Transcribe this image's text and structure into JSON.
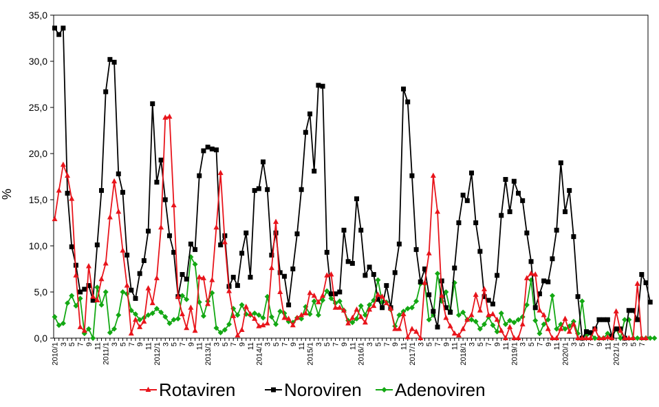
{
  "chart_data": {
    "type": "line",
    "title": "",
    "xlabel": "",
    "ylabel": "%",
    "ylim": [
      0,
      35
    ],
    "yticks": [
      "0,0",
      "5,0",
      "10,0",
      "15,0",
      "20,0",
      "25,0",
      "30,0",
      "35,0"
    ],
    "x_tick_labels": [
      "2010/1",
      "3",
      "5",
      "7",
      "9",
      "11",
      "2011/1",
      "3",
      "5",
      "7",
      "9",
      "11",
      "2012/1",
      "3",
      "5",
      "7",
      "9",
      "11",
      "2013/1",
      "3",
      "5",
      "7",
      "9",
      "11",
      "2014/1",
      "3",
      "5",
      "7",
      "9",
      "11",
      "2015/1",
      "3",
      "5",
      "7",
      "9",
      "11",
      "2016/1",
      "3",
      "5",
      "7",
      "9",
      "11",
      "2017/1",
      "3",
      "5",
      "7",
      "9",
      "11",
      "2018/1",
      "3",
      "5",
      "7",
      "9",
      "11",
      "2019/1",
      "3",
      "5",
      "7",
      "9",
      "11",
      "2020/1",
      "3",
      "5",
      "7",
      "9",
      "11",
      "2021/1",
      "3",
      "5",
      "7"
    ],
    "n_points": 140,
    "grid": false,
    "legend_position": "bottom",
    "series": [
      {
        "name": "Rotaviren",
        "color": "#e8141b",
        "marker": "triangle",
        "values": [
          12.9,
          16.0,
          18.8,
          17.6,
          15.1,
          6.8,
          1.2,
          0.8,
          7.8,
          4.5,
          4.1,
          6.4,
          8.1,
          13.1,
          17.0,
          13.7,
          9.5,
          5.7,
          0.5,
          2.0,
          1.2,
          1.8,
          5.4,
          3.8,
          6.5,
          12.0,
          23.9,
          24.0,
          14.4,
          4.5,
          2.6,
          1.1,
          3.3,
          0.8,
          6.6,
          6.5,
          3.7,
          6.3,
          12.0,
          17.9,
          10.4,
          5.1,
          2.4,
          0.3,
          0.9,
          3.4,
          2.6,
          2.1,
          1.3,
          1.4,
          1.6,
          7.6,
          12.6,
          5.0,
          2.2,
          2.1,
          1.4,
          2.2,
          2.5,
          2.7,
          4.9,
          4.6,
          3.9,
          4.6,
          6.8,
          6.9,
          3.3,
          3.3,
          3.0,
          1.6,
          2.2,
          3.1,
          2.3,
          1.7,
          3.1,
          3.5,
          4.7,
          4.5,
          3.8,
          3.2,
          1.0,
          1.0,
          2.6,
          0.1,
          1.0,
          0.7,
          0.0,
          6.0,
          9.2,
          17.6,
          13.7,
          4.6,
          2.2,
          1.3,
          0.5,
          0.3,
          1.0,
          2.0,
          2.5,
          4.7,
          3.0,
          5.3,
          2.5,
          2.6,
          2.0,
          0.8,
          0.0,
          1.2,
          0.0,
          0.0,
          1.5,
          6.5,
          7.0,
          6.9,
          3.0,
          2.5,
          1.0,
          0.0,
          0.0,
          1.0,
          2.1,
          0.7,
          1.5,
          0.0,
          0.0,
          0.0,
          0.0,
          1.0,
          0.0,
          0.0,
          0.1,
          0.0,
          2.9,
          0.8,
          0.0,
          0.0,
          0.0,
          5.9,
          0.0,
          0.0
        ],
        "note_values": "%"
      },
      {
        "name": "Noroviren",
        "color": "#000000",
        "marker": "square",
        "values": [
          33.6,
          32.9,
          33.6,
          15.7,
          9.9,
          7.9,
          5.0,
          5.3,
          5.7,
          4.1,
          10.1,
          16.0,
          26.7,
          30.2,
          29.9,
          17.8,
          15.8,
          9.0,
          5.2,
          4.3,
          7.0,
          8.4,
          11.6,
          25.4,
          16.9,
          19.3,
          15.0,
          11.1,
          9.3,
          4.5,
          6.9,
          6.4,
          10.2,
          9.6,
          17.6,
          20.3,
          20.7,
          20.5,
          20.4,
          10.1,
          11.1,
          5.6,
          6.6,
          5.7,
          9.2,
          11.4,
          6.6,
          16.0,
          16.2,
          19.1,
          16.1,
          9.0,
          11.4,
          7.1,
          6.7,
          3.6,
          7.5,
          11.3,
          16.1,
          22.3,
          24.3,
          18.1,
          27.4,
          27.3,
          9.3,
          4.8,
          4.8,
          5.0,
          11.7,
          8.3,
          8.1,
          15.1,
          11.7,
          6.8,
          7.7,
          6.9,
          4.2,
          3.3,
          5.7,
          3.3,
          7.1,
          10.2,
          27.0,
          25.6,
          17.6,
          9.6,
          6.1,
          7.5,
          4.7,
          2.9,
          1.2,
          6.2,
          3.3,
          2.8,
          7.6,
          12.5,
          15.5,
          14.9,
          17.9,
          12.5,
          9.4,
          4.5,
          4.1,
          3.7,
          6.8,
          13.3,
          17.2,
          13.7,
          17.0,
          15.7,
          14.9,
          11.4,
          8.3,
          3.3,
          4.8,
          6.2,
          6.1,
          8.6,
          11.7,
          19.0,
          13.7,
          16.0,
          11.0,
          4.5,
          0.0,
          0.7,
          0.6,
          1.0,
          2.0,
          2.0,
          2.0,
          0.2,
          1.0,
          1.0,
          0.0,
          3.0,
          3.0,
          2.0,
          6.9,
          6.0,
          3.9
        ]
      },
      {
        "name": "Adenoviren",
        "color": "#13a813",
        "marker": "diamond",
        "values": [
          2.3,
          1.4,
          1.6,
          3.8,
          4.6,
          3.5,
          4.3,
          0.5,
          1.0,
          0.0,
          5.5,
          3.6,
          5.0,
          0.6,
          1.0,
          2.5,
          5.0,
          4.8,
          3.0,
          2.6,
          2.0,
          2.2,
          2.5,
          2.7,
          3.2,
          2.8,
          2.3,
          1.6,
          2.0,
          2.1,
          4.6,
          4.2,
          8.8,
          8.0,
          3.9,
          2.4,
          4.0,
          4.9,
          1.1,
          0.6,
          0.9,
          1.5,
          3.2,
          2.5,
          3.6,
          2.6,
          2.5,
          2.7,
          2.5,
          2.2,
          4.5,
          2.3,
          1.5,
          2.9,
          2.7,
          1.8,
          1.7,
          2.2,
          2.1,
          3.4,
          2.6,
          4.0,
          2.5,
          4.1,
          5.1,
          4.3,
          3.8,
          4.0,
          3.0,
          1.9,
          1.7,
          2.1,
          3.5,
          2.5,
          3.6,
          4.1,
          6.3,
          3.9,
          3.9,
          3.1,
          1.3,
          2.5,
          2.9,
          3.2,
          3.3,
          4.0,
          5.9,
          5.9,
          2.0,
          2.5,
          7.0,
          4.0,
          5.0,
          3.0,
          6.0,
          2.5,
          2.8,
          2.0,
          2.0,
          1.8,
          1.0,
          1.5,
          2.3,
          1.4,
          0.7,
          2.7,
          1.5,
          1.9,
          1.7,
          2.0,
          2.3,
          3.6,
          6.3,
          1.9,
          0.5,
          1.5,
          2.0,
          4.6,
          1.0,
          1.5,
          1.0,
          1.3,
          1.8,
          0.5,
          4.0,
          0.3,
          0.5,
          0.0,
          0.0,
          0.0,
          0.5,
          0.0,
          1.0,
          0.0,
          2.0,
          2.0,
          0.0,
          0.0,
          0.0,
          0.0,
          0.0,
          0.0
        ]
      }
    ]
  }
}
